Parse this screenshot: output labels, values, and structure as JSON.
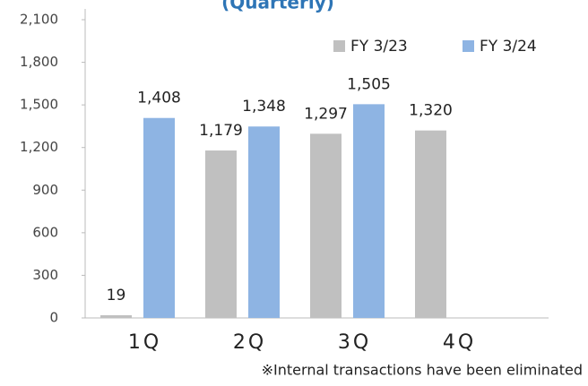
{
  "chart_data": {
    "type": "bar",
    "title": "(Quarterly)",
    "categories": [
      "1Q",
      "2Q",
      "3Q",
      "4Q"
    ],
    "series": [
      {
        "name": "FY 3/23",
        "color": "#c0c0c0",
        "values": [
          19,
          1179,
          1297,
          1320
        ],
        "value_labels": [
          "19",
          "1,179",
          "1,297",
          "1,320"
        ]
      },
      {
        "name": "FY 3/24",
        "color": "#8eb4e3",
        "values": [
          1408,
          1348,
          1505,
          null
        ],
        "value_labels": [
          "1,408",
          "1,348",
          "1,505",
          null
        ]
      }
    ],
    "ylim": [
      0,
      2100
    ],
    "yticks": [
      0,
      300,
      600,
      900,
      {
        "value": 1200,
        "label": "1,200"
      },
      {
        "value": 1500,
        "label": "1,500"
      },
      {
        "value": 1800,
        "label": "1,800"
      },
      {
        "value": 2100,
        "label": "2,100"
      }
    ],
    "legend": "top-right",
    "note": "※Internal transactions have been eliminated"
  }
}
